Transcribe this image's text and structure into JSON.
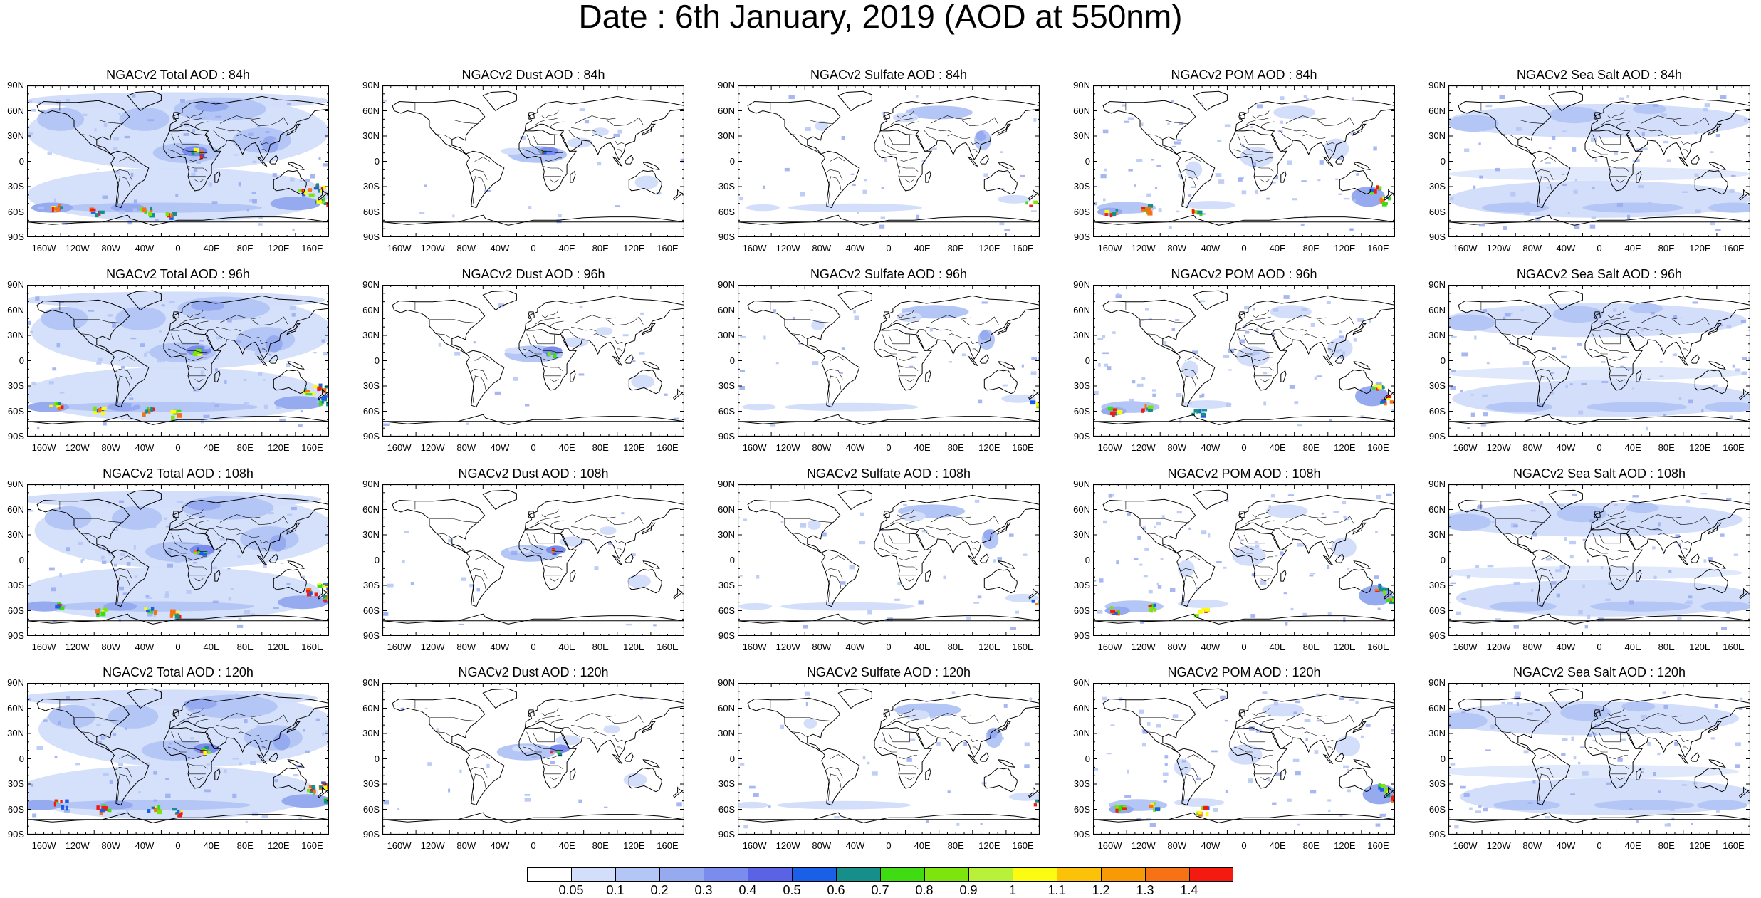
{
  "title": "Date : 6th January, 2019 (AOD at 550nm)",
  "lat_ticks": [
    "90N",
    "60N",
    "30N",
    "0",
    "30S",
    "60S",
    "90S"
  ],
  "lon_ticks": [
    "160W",
    "120W",
    "80W",
    "40W",
    "0",
    "40E",
    "80E",
    "120E",
    "160E"
  ],
  "columns": [
    {
      "species": "total",
      "pattern": "total"
    },
    {
      "species": "dust",
      "pattern": "dust"
    },
    {
      "species": "sulfate",
      "pattern": "sulfate"
    },
    {
      "species": "pom",
      "pattern": "pom"
    },
    {
      "species": "seasalt",
      "pattern": "seasalt"
    }
  ],
  "rows": [
    {
      "forecast_hour": "84h",
      "titles": [
        "NGACv2 Total AOD : 84h",
        "NGACv2 Dust AOD : 84h",
        "NGACv2 Sulfate AOD : 84h",
        "NGACv2 POM AOD : 84h",
        "NGACv2 Sea Salt AOD : 84h"
      ]
    },
    {
      "forecast_hour": "96h",
      "titles": [
        "NGACv2 Total AOD : 96h",
        "NGACv2 Dust AOD : 96h",
        "NGACv2 Sulfate AOD : 96h",
        "NGACv2 POM AOD : 96h",
        "NGACv2 Sea Salt AOD : 96h"
      ]
    },
    {
      "forecast_hour": "108h",
      "titles": [
        "NGACv2 Total AOD : 108h",
        "NGACv2 Dust AOD : 108h",
        "NGACv2 Sulfate AOD : 108h",
        "NGACv2 POM AOD : 108h",
        "NGACv2 Sea Salt AOD : 108h"
      ]
    },
    {
      "forecast_hour": "120h",
      "titles": [
        "NGACv2 Total AOD : 120h",
        "NGACv2 Dust AOD : 120h",
        "NGACv2 Sulfate AOD : 120h",
        "NGACv2 POM AOD : 120h",
        "NGACv2 Sea Salt  AOD : 120h"
      ]
    }
  ],
  "colorbar": {
    "labels": [
      "0.05",
      "0.1",
      "0.2",
      "0.3",
      "0.4",
      "0.5",
      "0.6",
      "0.7",
      "0.8",
      "0.9",
      "1",
      "1.1",
      "1.2",
      "1.3",
      "1.4"
    ],
    "colors": [
      "#ffffff",
      "#d3defa",
      "#b4c6f5",
      "#96aaf0",
      "#7a8ced",
      "#5a63e6",
      "#1a5fe8",
      "#168f8a",
      "#3fdc14",
      "#7ee40e",
      "#b8f03a",
      "#fcfc12",
      "#fcc20a",
      "#f79a06",
      "#f77214",
      "#f41a0f"
    ]
  }
}
